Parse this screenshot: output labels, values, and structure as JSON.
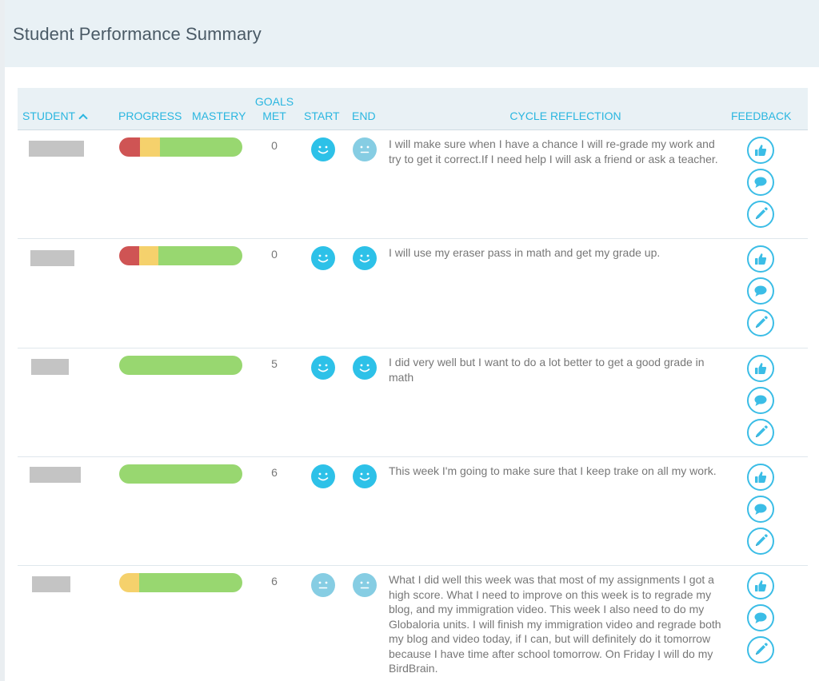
{
  "page": {
    "title": "Student Performance Summary"
  },
  "table": {
    "headers": {
      "student": "STUDENT",
      "progress": "PROGRESS",
      "mastery": "MASTERY",
      "goals_line1": "GOALS",
      "goals_line2": "MET",
      "start": "START",
      "end": "END",
      "reflection": "CYCLE REFLECTION",
      "feedback": "FEEDBACK"
    },
    "sort": {
      "column": "student",
      "direction": "ascending",
      "icon": "chevron-up-icon"
    }
  },
  "colors": {
    "accent": "#2ab6e0",
    "progress_red": "#cf5454",
    "progress_yellow": "#f5d16c",
    "progress_green": "#98d770",
    "face_happy": "#2dc1e8",
    "face_neutral": "#86cde3"
  },
  "students": [
    {
      "name_redacted": true,
      "progress": {
        "red": 0.17,
        "yellow": 0.16,
        "green": 0.67
      },
      "goals_met": "0",
      "start_mood": "happy",
      "end_mood": "neutral",
      "reflection": "I will make sure when I have a chance I will re-grade my work and try to get it correct.If I need help I will ask a friend or ask a teacher."
    },
    {
      "name_redacted": true,
      "progress": {
        "red": 0.16,
        "yellow": 0.16,
        "green": 0.68
      },
      "goals_met": "0",
      "start_mood": "happy",
      "end_mood": "happy",
      "reflection": "I will use my eraser pass in math and get my grade up."
    },
    {
      "name_redacted": true,
      "progress": {
        "red": 0,
        "yellow": 0,
        "green": 1
      },
      "goals_met": "5",
      "start_mood": "happy",
      "end_mood": "happy",
      "reflection": "I did very well but I want to do a lot better to get a good grade in math"
    },
    {
      "name_redacted": true,
      "progress": {
        "red": 0,
        "yellow": 0,
        "green": 1
      },
      "goals_met": "6",
      "start_mood": "happy",
      "end_mood": "happy",
      "reflection": "This week I'm going to make sure that I keep trake on all my work."
    },
    {
      "name_redacted": true,
      "progress": {
        "red": 0,
        "yellow": 0.16,
        "green": 0.84
      },
      "goals_met": "6",
      "start_mood": "neutral",
      "end_mood": "neutral",
      "reflection": "What I did well this week was that most of my assignments I got a high score. What I need to improve on this week is to regrade my blog, and my immigration video. This week I also need to do my Globaloria units. I will finish my immigration video and regrade both my blog and video today, if I can, but will definitely do it tomorrow because I have time after school tomorrow. On Friday I will do my BirdBrain."
    }
  ],
  "feedback_icons": [
    "thumbs-up-icon",
    "comment-icon",
    "pencil-icon"
  ]
}
